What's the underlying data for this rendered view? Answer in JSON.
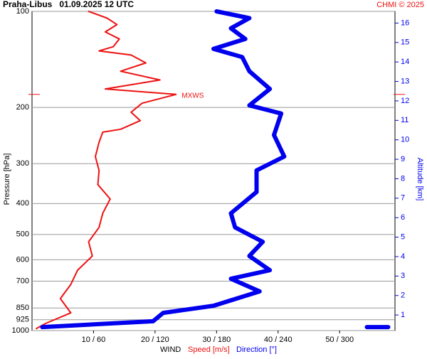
{
  "chart_data": {
    "type": "line",
    "title": "Praha-Libus   01.09.2025 12 UTC",
    "credit": "CHMI © 2025",
    "xlabel": "WIND",
    "ylabel": "Pressure [hPa]",
    "y2label": "Altitude [km]",
    "annotation": "MXWS",
    "ylog": true,
    "grid": true,
    "ylim": [
      1000,
      100
    ],
    "yticks": [
      100,
      200,
      300,
      400,
      500,
      600,
      700,
      850,
      925,
      1000
    ],
    "xlim": [
      0,
      59
    ],
    "x2lim": [
      0,
      354
    ],
    "xticks": [
      {
        "value": 10,
        "label": "10 / 60"
      },
      {
        "value": 20,
        "label": "20 / 120"
      },
      {
        "value": 30,
        "label": "30 / 180"
      },
      {
        "value": 40,
        "label": "40 / 240"
      },
      {
        "value": 50,
        "label": "50 / 300"
      }
    ],
    "y2lim": [
      0.2,
      16.6
    ],
    "y2ticks": [
      1,
      2,
      3,
      4,
      5,
      6,
      7,
      8,
      9,
      10,
      11,
      12,
      13,
      14,
      15,
      16
    ],
    "series": [
      {
        "name": "Speed [m/s]",
        "color": "#ee1111",
        "axis": "x",
        "width": 2,
        "values": [
          9.2,
          12.2,
          13.8,
          11.9,
          14.2,
          13.2,
          10.9,
          16.1,
          18.5,
          14.4,
          20.8,
          11.9,
          23.4,
          17.9,
          16.1,
          17.6,
          14.4,
          11.5,
          10.9,
          10.3,
          10.9,
          10.7,
          12.7,
          11.5,
          10.9,
          9.2,
          9.8,
          7.4,
          6.3,
          4.6,
          6.3,
          2.2,
          0.7
        ],
        "pressure": [
          100,
          105,
          110,
          116,
          122,
          129,
          133,
          137,
          145,
          154,
          164,
          175,
          182,
          194,
          207,
          220,
          234,
          239,
          257,
          285,
          315,
          349,
          387,
          429,
          475,
          527,
          584,
          647,
          717,
          794,
          880,
          950,
          985
        ]
      },
      {
        "name": "Direction [°]",
        "color": "#0000ee",
        "axis": "x2",
        "width": 6,
        "values": [
          180,
          212,
          194,
          208,
          177,
          205,
          212,
          232,
          212,
          243,
          236,
          246,
          219,
          219,
          194,
          198,
          225,
          212,
          232,
          194,
          222,
          177,
          128,
          118,
          10,
          null,
          337
        ],
        "pressure": [
          100,
          105,
          113,
          122,
          131,
          139,
          154,
          175,
          197,
          209,
          244,
          285,
          315,
          368,
          429,
          475,
          527,
          584,
          647,
          688,
          754,
          836,
          880,
          935,
          975,
          null,
          975
        ]
      }
    ]
  }
}
